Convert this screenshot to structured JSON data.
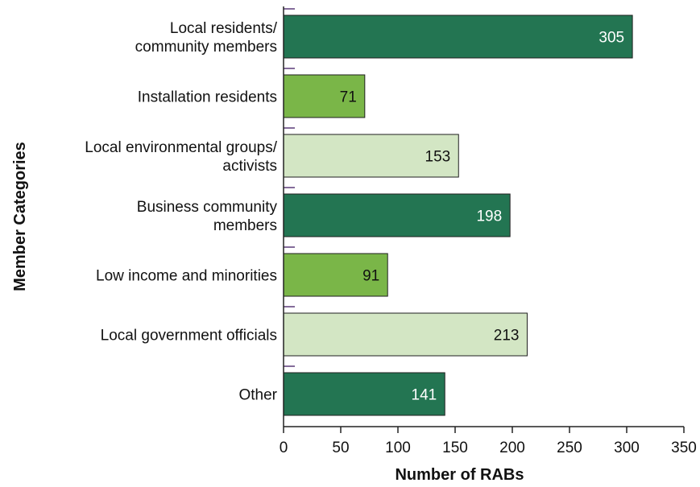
{
  "chart_data": {
    "type": "bar",
    "orientation": "horizontal",
    "categories": [
      "Local residents/ community members",
      "Installation residents",
      "Local environmental groups/ activists",
      "Business community members",
      "Low income and minorities",
      "Local government officials",
      "Other"
    ],
    "category_lines": [
      [
        "Local residents/",
        "community members"
      ],
      [
        "Installation residents"
      ],
      [
        "Local environmental groups/",
        "activists"
      ],
      [
        "Business community",
        "members"
      ],
      [
        "Low income and minorities"
      ],
      [
        "Local government officials"
      ],
      [
        "Other"
      ]
    ],
    "values": [
      305,
      71,
      153,
      198,
      91,
      213,
      141
    ],
    "bar_colors": [
      "#237552",
      "#7ab648",
      "#d3e6c4",
      "#237552",
      "#7ab648",
      "#d3e6c4",
      "#237552"
    ],
    "value_label_colors": [
      "#ffffff",
      "#111111",
      "#111111",
      "#ffffff",
      "#111111",
      "#111111",
      "#ffffff"
    ],
    "xlabel": "Number of RABs",
    "ylabel": "Member Categories",
    "xlim": [
      0,
      350
    ],
    "xticks": [
      0,
      50,
      100,
      150,
      200,
      250,
      300,
      350
    ],
    "grid": false,
    "legend": "none",
    "colors": {
      "axis": "#222222",
      "tick_marker": "#5b3a78",
      "bar_border": "#1f1f1f"
    }
  }
}
